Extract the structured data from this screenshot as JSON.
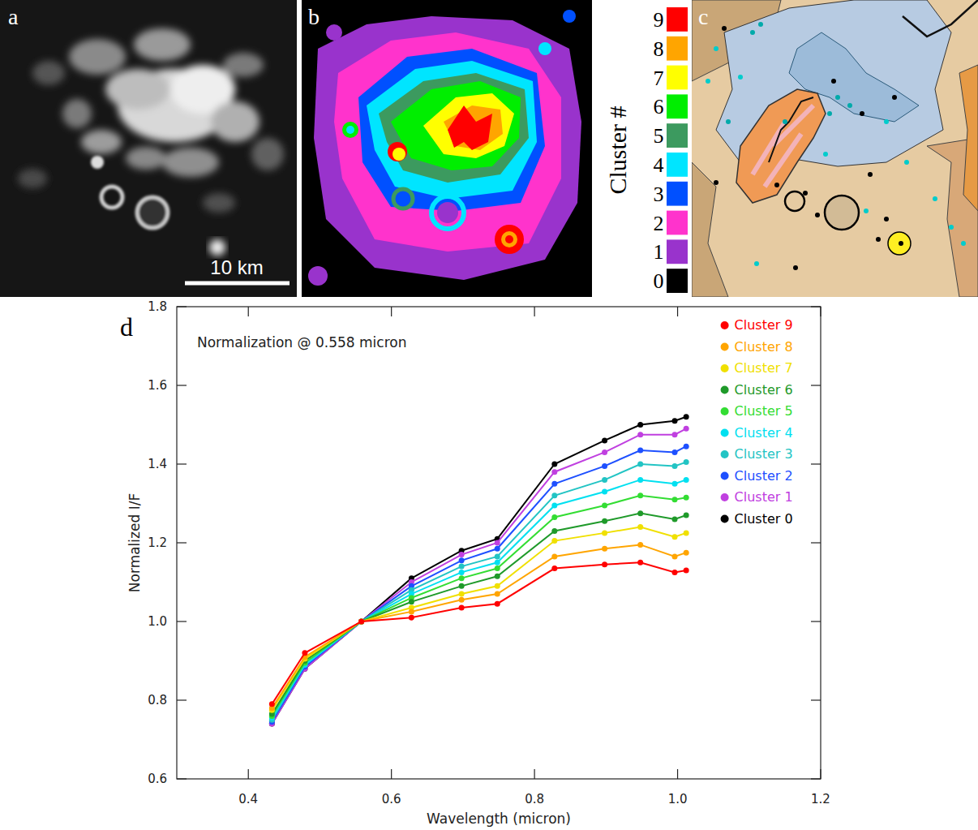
{
  "chart_data": {
    "type": "line",
    "title": "Normalization @ 0.558 micron",
    "x_label": "Wavelength (micron)",
    "y_label": "Normalized I/F",
    "panel_label": "d",
    "x": [
      0.433,
      0.479,
      0.558,
      0.628,
      0.698,
      0.748,
      0.828,
      0.898,
      0.948,
      0.996,
      1.012
    ],
    "xlim": [
      0.3,
      1.2
    ],
    "xticks": [
      0.4,
      0.6,
      0.8,
      {
        "value": 1,
        "label": "1.0"
      },
      1.2
    ],
    "ylim": [
      0.6,
      1.8
    ],
    "yticks": [
      0.6,
      0.8,
      {
        "value": 1,
        "label": "1.0"
      },
      1.2,
      1.4,
      1.6,
      1.8
    ],
    "grid": false,
    "legend": "top-right",
    "marker": "circle",
    "series": [
      {
        "name": "Cluster 9",
        "color": "#ff0000",
        "values": [
          0.79,
          0.92,
          1.0,
          1.01,
          1.035,
          1.045,
          1.135,
          1.145,
          1.15,
          1.125,
          1.13
        ]
      },
      {
        "name": "Cluster 8",
        "color": "#ffa500",
        "values": [
          0.78,
          0.91,
          1.0,
          1.025,
          1.055,
          1.07,
          1.165,
          1.185,
          1.195,
          1.165,
          1.175
        ]
      },
      {
        "name": "Cluster 7",
        "color": "#f0e000",
        "values": [
          0.775,
          0.905,
          1.0,
          1.035,
          1.07,
          1.09,
          1.205,
          1.225,
          1.24,
          1.215,
          1.225
        ]
      },
      {
        "name": "Cluster 6",
        "color": "#1f9a2a",
        "values": [
          0.765,
          0.9,
          1.0,
          1.05,
          1.09,
          1.115,
          1.23,
          1.255,
          1.275,
          1.26,
          1.27
        ]
      },
      {
        "name": "Cluster 5",
        "color": "#33dd33",
        "values": [
          0.76,
          0.895,
          1.0,
          1.06,
          1.11,
          1.135,
          1.265,
          1.295,
          1.32,
          1.31,
          1.315
        ]
      },
      {
        "name": "Cluster 4",
        "color": "#00e0f0",
        "values": [
          0.755,
          0.89,
          1.0,
          1.07,
          1.125,
          1.15,
          1.295,
          1.33,
          1.36,
          1.35,
          1.36
        ]
      },
      {
        "name": "Cluster 3",
        "color": "#22c4c4",
        "values": [
          0.75,
          0.89,
          1.0,
          1.08,
          1.14,
          1.165,
          1.32,
          1.36,
          1.4,
          1.395,
          1.405
        ]
      },
      {
        "name": "Cluster 2",
        "color": "#1e50ff",
        "values": [
          0.745,
          0.885,
          1.0,
          1.09,
          1.155,
          1.185,
          1.35,
          1.395,
          1.435,
          1.43,
          1.445
        ]
      },
      {
        "name": "Cluster 1",
        "color": "#c040e0",
        "values": [
          0.74,
          0.88,
          1.0,
          1.1,
          1.17,
          1.2,
          1.38,
          1.43,
          1.475,
          1.475,
          1.49
        ]
      },
      {
        "name": "Cluster 0",
        "color": "#000000",
        "values": [
          0.74,
          0.88,
          1.0,
          1.11,
          1.18,
          1.21,
          1.4,
          1.46,
          1.5,
          1.51,
          1.52
        ]
      }
    ]
  },
  "figure": {
    "panel_labels": [
      "a",
      "b",
      "c"
    ],
    "scale_bar": "10 km",
    "colorbar": {
      "title": "Cluster #",
      "ticks": [
        0,
        1,
        2,
        3,
        4,
        5,
        6,
        7,
        8,
        9
      ],
      "colors": [
        "#000000",
        "#9933cc",
        "#ff33cc",
        "#0050ff",
        "#00e5ff",
        "#3c9a5f",
        "#00ee00",
        "#ffff00",
        "#ffa500",
        "#ff0000"
      ]
    }
  }
}
